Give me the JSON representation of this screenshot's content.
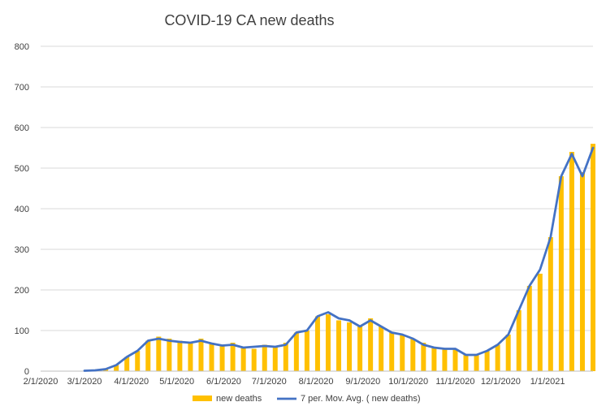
{
  "chart_data": {
    "type": "bar",
    "title": "COVID-19 CA new deaths",
    "xlabel": "",
    "ylabel": "",
    "ylim": [
      0,
      800
    ],
    "y_ticks": [
      0,
      100,
      200,
      300,
      400,
      500,
      600,
      700,
      800
    ],
    "x_start": "2/1/2020",
    "x_end": "1/31/2021",
    "x_tick_labels": [
      "2/1/2020",
      "3/1/2020",
      "4/1/2020",
      "5/1/2020",
      "6/1/2020",
      "7/1/2020",
      "8/1/2020",
      "9/1/2020",
      "10/1/2020",
      "11/1/2020",
      "12/1/2020",
      "1/1/2021"
    ],
    "grid": true,
    "legend_position": "bottom",
    "series": [
      {
        "name": "new deaths",
        "type": "bar",
        "color": "#ffc000",
        "dates": [
          "3/1/2020",
          "3/8/2020",
          "3/15/2020",
          "3/22/2020",
          "3/29/2020",
          "4/5/2020",
          "4/12/2020",
          "4/19/2020",
          "4/26/2020",
          "5/3/2020",
          "5/10/2020",
          "5/17/2020",
          "5/24/2020",
          "5/31/2020",
          "6/7/2020",
          "6/14/2020",
          "6/21/2020",
          "6/28/2020",
          "7/5/2020",
          "7/12/2020",
          "7/19/2020",
          "7/26/2020",
          "8/2/2020",
          "8/9/2020",
          "8/16/2020",
          "8/23/2020",
          "8/30/2020",
          "9/6/2020",
          "9/13/2020",
          "9/20/2020",
          "9/27/2020",
          "10/4/2020",
          "10/11/2020",
          "10/18/2020",
          "10/25/2020",
          "11/1/2020",
          "11/8/2020",
          "11/15/2020",
          "11/22/2020",
          "11/29/2020",
          "12/6/2020",
          "12/13/2020",
          "12/20/2020",
          "12/27/2020",
          "1/3/2021",
          "1/10/2021",
          "1/17/2021",
          "1/24/2021",
          "1/31/2021"
        ],
        "values": [
          1,
          2,
          5,
          15,
          35,
          50,
          75,
          85,
          80,
          75,
          70,
          80,
          70,
          65,
          70,
          60,
          55,
          65,
          60,
          70,
          95,
          100,
          135,
          140,
          125,
          120,
          110,
          130,
          110,
          95,
          90,
          80,
          70,
          60,
          55,
          55,
          40,
          40,
          50,
          65,
          90,
          150,
          210,
          240,
          330,
          480,
          540,
          490,
          560
        ]
      },
      {
        "name": "7 per. Mov. Avg. ( new deaths)",
        "type": "line",
        "color": "#4472c4",
        "dates": [
          "3/1/2020",
          "3/8/2020",
          "3/15/2020",
          "3/22/2020",
          "3/29/2020",
          "4/5/2020",
          "4/12/2020",
          "4/19/2020",
          "4/26/2020",
          "5/3/2020",
          "5/10/2020",
          "5/17/2020",
          "5/24/2020",
          "5/31/2020",
          "6/7/2020",
          "6/14/2020",
          "6/21/2020",
          "6/28/2020",
          "7/5/2020",
          "7/12/2020",
          "7/19/2020",
          "7/26/2020",
          "8/2/2020",
          "8/9/2020",
          "8/16/2020",
          "8/23/2020",
          "8/30/2020",
          "9/6/2020",
          "9/13/2020",
          "9/20/2020",
          "9/27/2020",
          "10/4/2020",
          "10/11/2020",
          "10/18/2020",
          "10/25/2020",
          "11/1/2020",
          "11/8/2020",
          "11/15/2020",
          "11/22/2020",
          "11/29/2020",
          "12/6/2020",
          "12/13/2020",
          "12/20/2020",
          "12/27/2020",
          "1/3/2021",
          "1/10/2021",
          "1/17/2021",
          "1/24/2021",
          "1/31/2021"
        ],
        "values": [
          1,
          2,
          5,
          15,
          35,
          50,
          75,
          80,
          75,
          72,
          70,
          75,
          68,
          63,
          65,
          58,
          60,
          62,
          60,
          65,
          95,
          100,
          135,
          145,
          130,
          125,
          110,
          125,
          110,
          95,
          90,
          80,
          65,
          58,
          55,
          55,
          40,
          40,
          50,
          65,
          90,
          150,
          210,
          250,
          330,
          480,
          535,
          480,
          550
        ]
      }
    ]
  }
}
